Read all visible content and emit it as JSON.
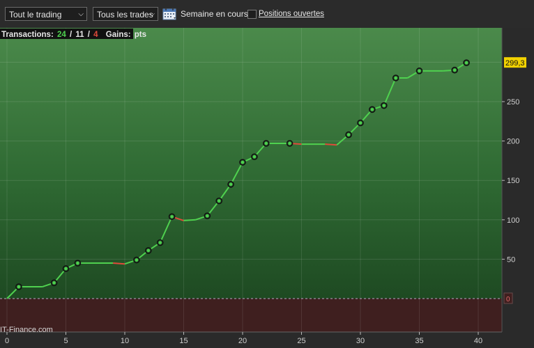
{
  "toolbar": {
    "period_select": "Tout le trading",
    "trades_select": "Tous les trades",
    "week_label": "Semaine en cours",
    "open_positions_label": "Positions ouvertes"
  },
  "summary": {
    "transactions_label": "Transactions:",
    "total": "24",
    "sep1": "/",
    "winners": "11",
    "sep2": "/",
    "losers": "4",
    "gains_label": "Gains:",
    "gains_unit": "pts"
  },
  "watermark": "IT-Finance.com",
  "colors": {
    "up": "#4fd14f",
    "down": "#e04a3a",
    "badge": "#f2d200",
    "winners": "#4fd14f",
    "losers": "#e04a3a"
  },
  "chart_data": {
    "type": "line",
    "xlabel": "",
    "ylabel": "",
    "x_ticks": [
      0,
      5,
      10,
      15,
      20,
      25,
      30,
      35,
      40
    ],
    "y_ticks": [
      0,
      50,
      100,
      150,
      200,
      250
    ],
    "xlim": [
      0,
      41
    ],
    "ylim": [
      -45,
      345
    ],
    "last_value_label": "299,3",
    "grid": true,
    "series": [
      {
        "x": [
          0,
          1,
          3,
          4,
          5,
          6,
          9,
          10,
          11,
          12,
          13,
          14,
          15,
          16,
          17,
          18,
          19,
          20,
          21,
          22,
          24,
          25,
          27,
          28,
          29,
          30,
          31,
          32,
          33,
          34,
          35,
          37,
          38,
          39
        ],
        "y": [
          0,
          15,
          15,
          20,
          38,
          45,
          45,
          44,
          49,
          61,
          71,
          104,
          99,
          100,
          105,
          124,
          145,
          173,
          180,
          197,
          197,
          196,
          196,
          195,
          208,
          223,
          240,
          245,
          280,
          280,
          289,
          289,
          290,
          299.3
        ],
        "markers": [
          1,
          4,
          5,
          6,
          11,
          12,
          13,
          14,
          17,
          18,
          19,
          20,
          21,
          22,
          24,
          29,
          30,
          31,
          32,
          33,
          35,
          38,
          39
        ]
      }
    ]
  }
}
